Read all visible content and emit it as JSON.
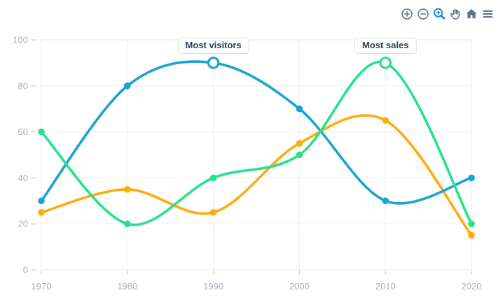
{
  "toolbar": {
    "buttons": [
      {
        "name": "zoom-in",
        "icon": "plus-circle-icon",
        "active": false
      },
      {
        "name": "zoom-out",
        "icon": "minus-circle-icon",
        "active": false
      },
      {
        "name": "box-zoom",
        "icon": "magnifier-plus-icon",
        "active": true
      },
      {
        "name": "pan",
        "icon": "hand-icon",
        "active": false
      },
      {
        "name": "reset",
        "icon": "home-icon",
        "active": false
      },
      {
        "name": "menu",
        "icon": "hamburger-icon",
        "active": false
      }
    ],
    "icon_color": "#5d7186",
    "active_icon_color": "#0d87d3"
  },
  "chart_data": {
    "type": "line",
    "x": [
      1970,
      1980,
      1990,
      2000,
      2010,
      2020
    ],
    "x_tick_labels": [
      "1970",
      "1980",
      "1990",
      "2000",
      "2010",
      "2020"
    ],
    "xlim": [
      1970,
      2020
    ],
    "ylim": [
      0,
      100
    ],
    "y_ticks": [
      0,
      20,
      40,
      60,
      80,
      100
    ],
    "y_tick_labels": [
      "0",
      "20",
      "40",
      "60",
      "80",
      "100"
    ],
    "grid": true,
    "legend": "none",
    "curve": "smooth",
    "series": [
      {
        "id": "orange",
        "color": "#ffab0e",
        "values": [
          25,
          35,
          25,
          55,
          65,
          15
        ]
      },
      {
        "id": "blue",
        "color": "#1aa3d3",
        "values": [
          30,
          80,
          90,
          70,
          30,
          40
        ]
      },
      {
        "id": "green",
        "color": "#27e28a",
        "values": [
          60,
          20,
          40,
          50,
          90,
          20
        ]
      }
    ],
    "annotations": [
      {
        "label": "Most visitors",
        "x": 1990,
        "y": 90,
        "series_index": 1
      },
      {
        "label": "Most sales",
        "x": 2010,
        "y": 90,
        "series_index": 2
      }
    ]
  },
  "theme": {
    "background": "#ffffff",
    "grid_color": "#f1f3f6",
    "border_color": "#edf0f3",
    "tick_color": "#c6cfd8",
    "axis_label_color": "#a4b2c0",
    "annotation_text_color": "#2e3f56",
    "annotation_border_color": "#d8dde3"
  }
}
